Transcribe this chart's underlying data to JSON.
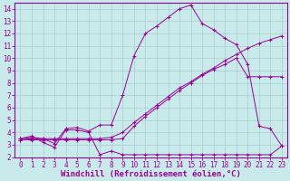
{
  "background_color": "#c8eaea",
  "line_color": "#990099",
  "grid_color": "#aacccc",
  "xlabel": "Windchill (Refroidissement éolien,°C)",
  "xlabel_fontsize": 6.5,
  "tick_fontsize": 5.5,
  "xlim": [
    -0.5,
    23.5
  ],
  "ylim": [
    2,
    14.5
  ],
  "yticks": [
    2,
    3,
    4,
    5,
    6,
    7,
    8,
    9,
    10,
    11,
    12,
    13,
    14
  ],
  "xticks": [
    0,
    1,
    2,
    3,
    4,
    5,
    6,
    7,
    8,
    9,
    10,
    11,
    12,
    13,
    14,
    15,
    16,
    17,
    18,
    19,
    20,
    21,
    22,
    23
  ],
  "series1_x": [
    0,
    1,
    2,
    3,
    4,
    5,
    6,
    7,
    8,
    9,
    10,
    11,
    12,
    13,
    14,
    15,
    16,
    17,
    18,
    19,
    20,
    21,
    22,
    23
  ],
  "series1_y": [
    3.5,
    3.7,
    3.2,
    2.8,
    4.2,
    4.2,
    4.0,
    2.2,
    2.5,
    2.2,
    2.2,
    2.2,
    2.2,
    2.2,
    2.2,
    2.2,
    2.2,
    2.2,
    2.2,
    2.2,
    2.2,
    2.2,
    2.2,
    2.9
  ],
  "series2_x": [
    0,
    1,
    2,
    3,
    4,
    5,
    6,
    7,
    8,
    9,
    10,
    11,
    12,
    13,
    14,
    15,
    16,
    17,
    18,
    19,
    20,
    21,
    22,
    23
  ],
  "series2_y": [
    3.4,
    3.5,
    3.5,
    3.5,
    3.5,
    3.5,
    3.5,
    3.5,
    3.6,
    4.0,
    4.8,
    5.5,
    6.2,
    6.9,
    7.6,
    8.1,
    8.7,
    9.2,
    9.8,
    10.3,
    10.8,
    11.2,
    11.5,
    11.8
  ],
  "series3_x": [
    0,
    1,
    2,
    3,
    4,
    5,
    6,
    7,
    8,
    9,
    10,
    11,
    12,
    13,
    14,
    15,
    16,
    17,
    18,
    19,
    20,
    21,
    22,
    23
  ],
  "series3_y": [
    3.5,
    3.6,
    3.5,
    3.1,
    4.3,
    4.4,
    4.1,
    4.6,
    4.6,
    7.0,
    10.2,
    12.0,
    12.6,
    13.3,
    14.0,
    14.3,
    12.8,
    12.3,
    11.6,
    11.1,
    9.5,
    4.5,
    4.3,
    2.9
  ],
  "series4_x": [
    0,
    1,
    2,
    3,
    4,
    5,
    6,
    7,
    8,
    9,
    10,
    11,
    12,
    13,
    14,
    15,
    16,
    17,
    18,
    19,
    20,
    21,
    22,
    23
  ],
  "series4_y": [
    3.4,
    3.4,
    3.4,
    3.4,
    3.4,
    3.4,
    3.4,
    3.4,
    3.4,
    3.5,
    4.5,
    5.3,
    6.0,
    6.7,
    7.4,
    8.0,
    8.6,
    9.1,
    9.5,
    10.0,
    8.5,
    8.5,
    8.5,
    8.5
  ]
}
